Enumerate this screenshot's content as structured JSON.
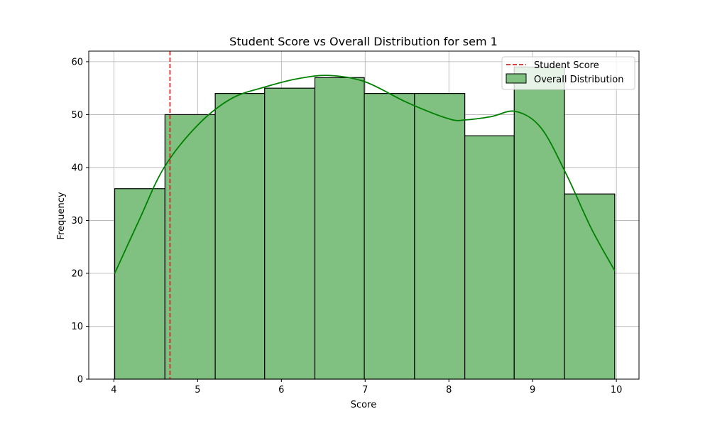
{
  "chart_data": {
    "type": "bar",
    "title": "Student Score vs Overall Distribution for sem 1",
    "xlabel": "Score",
    "ylabel": "Frequency",
    "xlim": [
      3.7,
      10.27
    ],
    "ylim": [
      0,
      62
    ],
    "xticks": [
      4,
      5,
      6,
      7,
      8,
      9,
      10
    ],
    "yticks": [
      0,
      10,
      20,
      30,
      40,
      50,
      60
    ],
    "grid": true,
    "legend_position": "top-right",
    "bins": [
      {
        "x0": 4.01,
        "x1": 4.61,
        "count": 36
      },
      {
        "x0": 4.61,
        "x1": 5.21,
        "count": 50
      },
      {
        "x0": 5.21,
        "x1": 5.8,
        "count": 54
      },
      {
        "x0": 5.8,
        "x1": 6.4,
        "count": 55
      },
      {
        "x0": 6.4,
        "x1": 6.99,
        "count": 57
      },
      {
        "x0": 6.99,
        "x1": 7.59,
        "count": 54
      },
      {
        "x0": 7.59,
        "x1": 8.19,
        "count": 54
      },
      {
        "x0": 8.19,
        "x1": 8.78,
        "count": 46
      },
      {
        "x0": 8.78,
        "x1": 9.38,
        "count": 59
      },
      {
        "x0": 9.38,
        "x1": 9.98,
        "count": 35
      }
    ],
    "kde": {
      "x": [
        4.01,
        4.3,
        4.6,
        5.0,
        5.4,
        5.8,
        6.2,
        6.57,
        7.0,
        7.5,
        8.0,
        8.2,
        8.5,
        8.8,
        9.1,
        9.4,
        9.7,
        9.98
      ],
      "y": [
        20,
        30,
        40,
        48,
        53,
        55.2,
        56.8,
        57.4,
        56.2,
        52.3,
        49.2,
        49.0,
        49.6,
        50.6,
        47.5,
        38.8,
        28.5,
        20.5
      ]
    },
    "student_score": 4.67,
    "series": [
      {
        "name": "Student Score",
        "color": "#d62728",
        "style": "dashed"
      },
      {
        "name": "Overall Distribution",
        "color": "#80c080",
        "edge": "#000000"
      }
    ],
    "kde_color": "#008000",
    "bar_color": "#80c080"
  }
}
